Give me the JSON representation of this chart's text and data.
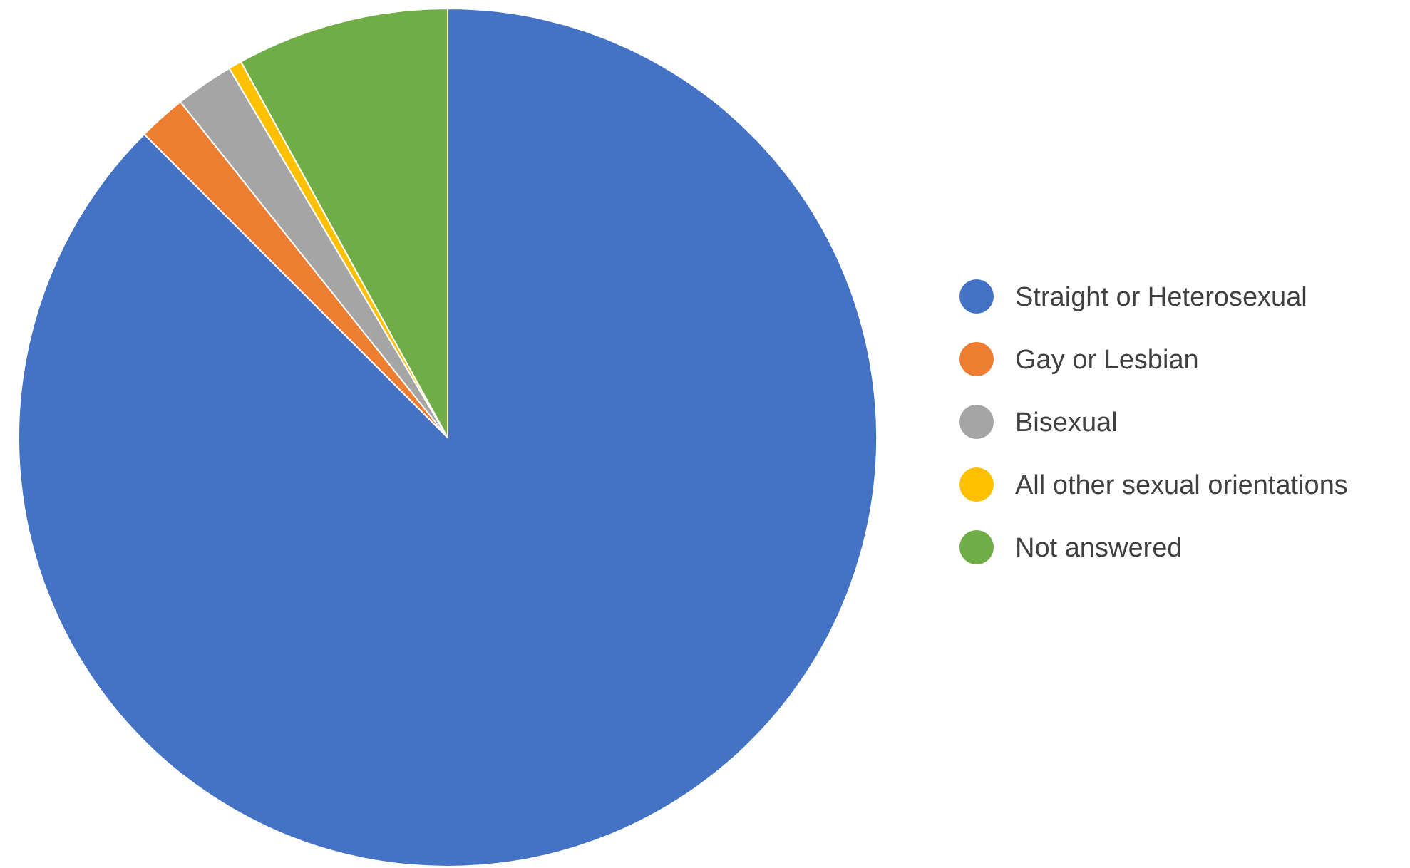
{
  "chart_data": {
    "type": "pie",
    "categories": [
      "Straight or Heterosexual",
      "Gay or Lesbian",
      "Bisexual",
      "All other sexual orientations",
      "Not answered"
    ],
    "values": [
      87.5,
      1.8,
      2.2,
      0.5,
      8.0
    ],
    "colors": [
      "#4472c4",
      "#ed7d31",
      "#a5a5a5",
      "#ffc000",
      "#70ad47"
    ],
    "legend": "right"
  }
}
